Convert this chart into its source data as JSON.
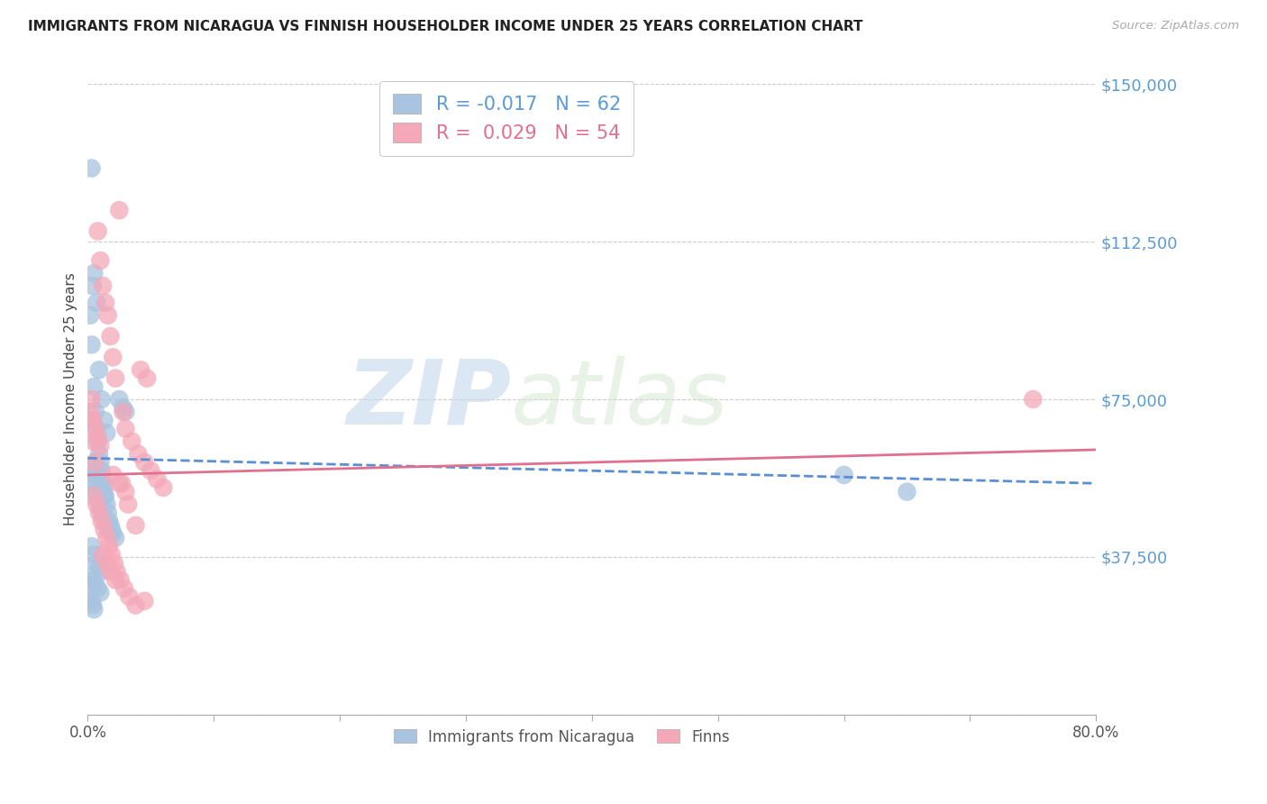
{
  "title": "IMMIGRANTS FROM NICARAGUA VS FINNISH HOUSEHOLDER INCOME UNDER 25 YEARS CORRELATION CHART",
  "source": "Source: ZipAtlas.com",
  "ylabel": "Householder Income Under 25 years",
  "xlim": [
    0.0,
    0.8
  ],
  "ylim": [
    0,
    150000
  ],
  "yticks": [
    0,
    37500,
    75000,
    112500,
    150000
  ],
  "ytick_labels": [
    "",
    "$37,500",
    "$75,000",
    "$112,500",
    "$150,000"
  ],
  "blue_R": -0.017,
  "blue_N": 62,
  "pink_R": 0.029,
  "pink_N": 54,
  "blue_color": "#a8c4e0",
  "pink_color": "#f4a8b8",
  "blue_line_color": "#5b8fd4",
  "pink_line_color": "#e07090",
  "legend_label_blue": "Immigrants from Nicaragua",
  "legend_label_pink": "Finns",
  "watermark_zip": "ZIP",
  "watermark_atlas": "atlas",
  "background_color": "#ffffff",
  "blue_scatter_x": [
    0.002,
    0.003,
    0.004,
    0.005,
    0.006,
    0.007,
    0.008,
    0.009,
    0.01,
    0.011,
    0.012,
    0.013,
    0.014,
    0.015,
    0.016,
    0.017,
    0.018,
    0.019,
    0.02,
    0.022,
    0.003,
    0.005,
    0.007,
    0.009,
    0.011,
    0.013,
    0.015,
    0.002,
    0.004,
    0.006,
    0.008,
    0.01,
    0.012,
    0.014,
    0.016,
    0.003,
    0.005,
    0.007,
    0.009,
    0.011,
    0.002,
    0.004,
    0.006,
    0.008,
    0.01,
    0.002,
    0.003,
    0.004,
    0.005,
    0.006,
    0.007,
    0.008,
    0.009,
    0.01,
    0.011,
    0.012,
    0.013,
    0.025,
    0.028,
    0.03,
    0.6,
    0.65
  ],
  "blue_scatter_y": [
    95000,
    88000,
    102000,
    78000,
    72000,
    68000,
    65000,
    62000,
    60000,
    58000,
    56000,
    54000,
    52000,
    50000,
    48000,
    46000,
    45000,
    44000,
    43000,
    42000,
    130000,
    105000,
    98000,
    82000,
    75000,
    70000,
    67000,
    57000,
    55000,
    53000,
    51000,
    49000,
    47000,
    45500,
    44500,
    40000,
    38000,
    36000,
    35000,
    34000,
    33000,
    32000,
    31000,
    30000,
    29000,
    28000,
    27000,
    26000,
    25000,
    60000,
    58000,
    57000,
    56000,
    55000,
    54000,
    53000,
    52000,
    75000,
    73000,
    72000,
    57000,
    53000
  ],
  "pink_scatter_x": [
    0.002,
    0.004,
    0.006,
    0.008,
    0.01,
    0.012,
    0.014,
    0.016,
    0.018,
    0.02,
    0.022,
    0.025,
    0.028,
    0.03,
    0.035,
    0.04,
    0.045,
    0.05,
    0.055,
    0.06,
    0.003,
    0.005,
    0.007,
    0.009,
    0.011,
    0.013,
    0.015,
    0.017,
    0.019,
    0.021,
    0.023,
    0.026,
    0.029,
    0.033,
    0.038,
    0.042,
    0.047,
    0.002,
    0.004,
    0.006,
    0.008,
    0.01,
    0.012,
    0.015,
    0.018,
    0.022,
    0.027,
    0.032,
    0.038,
    0.045,
    0.02,
    0.025,
    0.03,
    0.75
  ],
  "pink_scatter_y": [
    70000,
    65000,
    60000,
    115000,
    108000,
    102000,
    98000,
    95000,
    90000,
    85000,
    80000,
    120000,
    72000,
    68000,
    65000,
    62000,
    60000,
    58000,
    56000,
    54000,
    75000,
    52000,
    50000,
    48000,
    46000,
    44000,
    42000,
    40000,
    38000,
    36000,
    34000,
    32000,
    30000,
    28000,
    26000,
    82000,
    80000,
    72000,
    70000,
    68000,
    66000,
    64000,
    38000,
    36000,
    34000,
    32000,
    55000,
    50000,
    45000,
    27000,
    57000,
    55000,
    53000,
    75000
  ],
  "blue_line_y0": 61000,
  "blue_line_y1": 55000,
  "pink_line_y0": 57000,
  "pink_line_y1": 63000
}
